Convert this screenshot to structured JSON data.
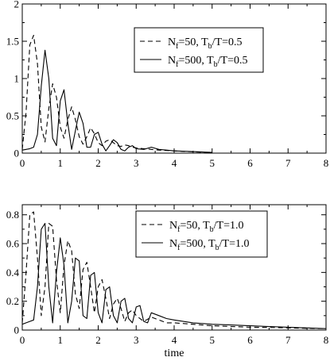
{
  "chart_data": [
    {
      "type": "line",
      "xlabel": "",
      "ylabel": "",
      "xlim": [
        0,
        8
      ],
      "ylim": [
        0,
        2
      ],
      "xticks": [
        "0",
        "1",
        "2",
        "3",
        "4",
        "5",
        "6",
        "7",
        "8"
      ],
      "yticks": [
        "0",
        "0.5",
        "1",
        "1.5",
        "2"
      ],
      "grid": false,
      "legend_position": "top-right",
      "series": [
        {
          "name": "N_f=50, T_b/T=0.5",
          "legend": {
            "p1": "N",
            "s1": "f",
            "p2": "=50, T",
            "s2": "b",
            "p3": "/T=0.5"
          },
          "style": "dashed",
          "x": [
            0,
            0.1,
            0.2,
            0.3,
            0.4,
            0.5,
            0.6,
            0.7,
            0.8,
            0.9,
            1.0,
            1.1,
            1.2,
            1.3,
            1.4,
            1.5,
            1.6,
            1.7,
            1.8,
            1.9,
            2.0,
            2.1,
            2.2,
            2.3,
            2.4,
            2.5,
            2.6,
            2.7,
            2.8,
            2.9,
            3.0,
            3.2,
            3.4,
            3.6,
            3.8,
            4.0,
            4.2,
            4.4,
            4.6,
            4.8,
            5.0
          ],
          "y": [
            0.05,
            0.55,
            1.45,
            1.58,
            1.2,
            0.35,
            0.15,
            0.6,
            0.93,
            0.75,
            0.35,
            0.2,
            0.45,
            0.62,
            0.45,
            0.22,
            0.12,
            0.22,
            0.34,
            0.26,
            0.14,
            0.1,
            0.16,
            0.18,
            0.14,
            0.1,
            0.09,
            0.11,
            0.1,
            0.08,
            0.07,
            0.06,
            0.05,
            0.04,
            0.035,
            0.03,
            0.025,
            0.02,
            0.015,
            0.01,
            0.005
          ]
        },
        {
          "name": "N_f=500, T_b/T=0.5",
          "legend": {
            "p1": "N",
            "s1": "f",
            "p2": "=500,  T",
            "s2": "b",
            "p3": "/T=0.5"
          },
          "style": "solid",
          "x": [
            0,
            0.1,
            0.2,
            0.3,
            0.4,
            0.5,
            0.6,
            0.7,
            0.8,
            0.9,
            1.0,
            1.1,
            1.2,
            1.3,
            1.4,
            1.5,
            1.6,
            1.7,
            1.8,
            1.9,
            2.0,
            2.1,
            2.2,
            2.3,
            2.4,
            2.5,
            2.6,
            2.7,
            2.8,
            2.9,
            3.0,
            3.2,
            3.4,
            3.6,
            3.8,
            4.0,
            4.5,
            5.0
          ],
          "y": [
            0.04,
            0.05,
            0.06,
            0.08,
            0.25,
            0.9,
            1.38,
            1.0,
            0.2,
            0.1,
            0.7,
            0.85,
            0.4,
            0.05,
            0.3,
            0.55,
            0.4,
            0.08,
            0.08,
            0.25,
            0.28,
            0.12,
            0.03,
            0.1,
            0.18,
            0.14,
            0.05,
            0.03,
            0.08,
            0.1,
            0.06,
            0.05,
            0.08,
            0.05,
            0.04,
            0.03,
            0.02,
            0.01
          ]
        }
      ]
    },
    {
      "type": "line",
      "xlabel": "time",
      "ylabel": "",
      "xlim": [
        0,
        8
      ],
      "ylim": [
        0,
        0.87
      ],
      "xticks": [
        "0",
        "1",
        "2",
        "3",
        "4",
        "5",
        "6",
        "7",
        "8"
      ],
      "yticks": [
        "0",
        "0.2",
        "0.4",
        "0.6",
        "0.8"
      ],
      "grid": false,
      "legend_position": "center-right",
      "series": [
        {
          "name": "N_f=50, T_b/T=1.0",
          "legend": {
            "p1": "N",
            "s1": "f",
            "p2": "=50, T",
            "s2": "b",
            "p3": "/T=1.0"
          },
          "style": "dashed",
          "x": [
            0,
            0.1,
            0.2,
            0.3,
            0.4,
            0.5,
            0.6,
            0.7,
            0.8,
            0.9,
            1.0,
            1.1,
            1.2,
            1.3,
            1.4,
            1.5,
            1.6,
            1.7,
            1.8,
            1.9,
            2.0,
            2.1,
            2.2,
            2.3,
            2.4,
            2.5,
            2.6,
            2.7,
            2.8,
            2.9,
            3.0,
            3.2,
            3.4,
            3.6,
            3.8,
            4.0,
            4.5,
            5.0,
            5.5,
            6.0,
            6.5,
            7.0,
            7.5,
            8.0
          ],
          "y": [
            0.05,
            0.4,
            0.8,
            0.82,
            0.5,
            0.1,
            0.3,
            0.74,
            0.72,
            0.35,
            0.12,
            0.45,
            0.62,
            0.55,
            0.25,
            0.15,
            0.42,
            0.47,
            0.3,
            0.12,
            0.3,
            0.35,
            0.22,
            0.08,
            0.18,
            0.22,
            0.15,
            0.06,
            0.12,
            0.14,
            0.1,
            0.06,
            0.09,
            0.07,
            0.05,
            0.05,
            0.04,
            0.03,
            0.025,
            0.02,
            0.018,
            0.015,
            0.012,
            0.01
          ]
        },
        {
          "name": "N_f=500, T_b/T=1.0",
          "legend": {
            "p1": "N",
            "s1": "f",
            "p2": "=500, T",
            "s2": "b",
            "p3": "/T=1.0"
          },
          "style": "solid",
          "x": [
            0,
            0.1,
            0.2,
            0.3,
            0.4,
            0.5,
            0.6,
            0.7,
            0.8,
            0.9,
            1.0,
            1.1,
            1.2,
            1.3,
            1.4,
            1.5,
            1.6,
            1.7,
            1.8,
            1.9,
            2.0,
            2.1,
            2.2,
            2.3,
            2.4,
            2.5,
            2.6,
            2.7,
            2.8,
            2.9,
            3.0,
            3.1,
            3.2,
            3.3,
            3.4,
            3.6,
            3.8,
            4.0,
            4.5,
            5.0,
            5.5,
            6.0,
            6.5,
            7.0,
            7.5,
            8.0
          ],
          "y": [
            0.04,
            0.05,
            0.06,
            0.07,
            0.3,
            0.7,
            0.74,
            0.3,
            0.05,
            0.4,
            0.64,
            0.45,
            0.05,
            0.2,
            0.5,
            0.48,
            0.1,
            0.08,
            0.38,
            0.4,
            0.12,
            0.05,
            0.28,
            0.3,
            0.1,
            0.05,
            0.2,
            0.22,
            0.08,
            0.05,
            0.16,
            0.17,
            0.06,
            0.05,
            0.12,
            0.1,
            0.08,
            0.07,
            0.05,
            0.04,
            0.035,
            0.03,
            0.025,
            0.02,
            0.015,
            0.01
          ]
        }
      ]
    }
  ]
}
